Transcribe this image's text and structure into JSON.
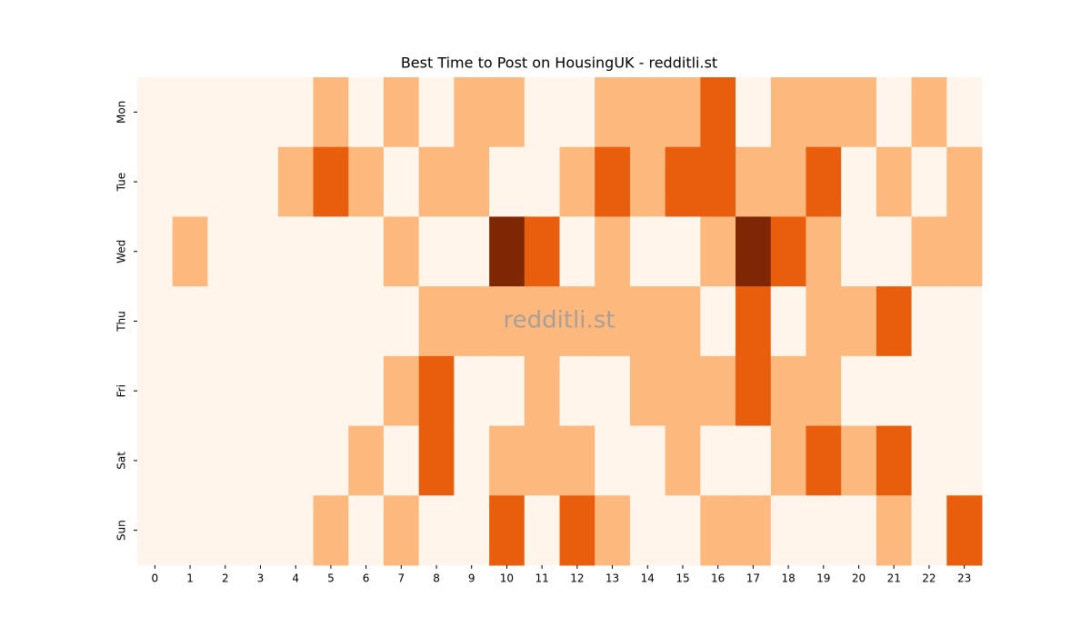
{
  "chart_data": {
    "type": "heatmap",
    "title": "Best Time to Post on HousingUK - redditli.st",
    "watermark": "redditli.st",
    "categories": [
      0,
      1,
      2,
      3,
      4,
      5,
      6,
      7,
      8,
      9,
      10,
      11,
      12,
      13,
      14,
      15,
      16,
      17,
      18,
      19,
      20,
      21,
      22,
      23
    ],
    "y_categories": [
      "Mon",
      "Tue",
      "Wed",
      "Thu",
      "Fri",
      "Sat",
      "Sun"
    ],
    "values": [
      [
        0,
        0,
        0,
        0,
        0,
        1,
        0,
        1,
        0,
        1,
        1,
        0,
        0,
        1,
        1,
        1,
        2,
        0,
        1,
        1,
        1,
        0,
        1,
        0
      ],
      [
        0,
        0,
        0,
        0,
        1,
        2,
        1,
        0,
        1,
        1,
        0,
        0,
        1,
        2,
        1,
        2,
        2,
        1,
        1,
        2,
        0,
        1,
        0,
        1
      ],
      [
        0,
        1,
        0,
        0,
        0,
        0,
        0,
        1,
        0,
        0,
        3,
        2,
        0,
        1,
        0,
        0,
        1,
        3,
        2,
        1,
        0,
        0,
        1,
        1
      ],
      [
        0,
        0,
        0,
        0,
        0,
        0,
        0,
        0,
        1,
        1,
        1,
        1,
        1,
        1,
        1,
        1,
        0,
        2,
        0,
        1,
        1,
        2,
        0,
        0
      ],
      [
        0,
        0,
        0,
        0,
        0,
        0,
        0,
        1,
        2,
        0,
        0,
        1,
        0,
        0,
        1,
        1,
        1,
        2,
        1,
        1,
        0,
        0,
        0,
        0
      ],
      [
        0,
        0,
        0,
        0,
        0,
        0,
        1,
        0,
        2,
        0,
        1,
        1,
        1,
        0,
        0,
        1,
        0,
        0,
        1,
        2,
        1,
        2,
        0,
        0
      ],
      [
        0,
        0,
        0,
        0,
        0,
        1,
        0,
        1,
        0,
        0,
        2,
        0,
        2,
        1,
        0,
        0,
        1,
        1,
        0,
        0,
        0,
        1,
        0,
        2
      ]
    ],
    "zlim": [
      0,
      3
    ],
    "colors": [
      "#fff5eb",
      "#fdb97d",
      "#e95e0d",
      "#7f2704"
    ]
  }
}
